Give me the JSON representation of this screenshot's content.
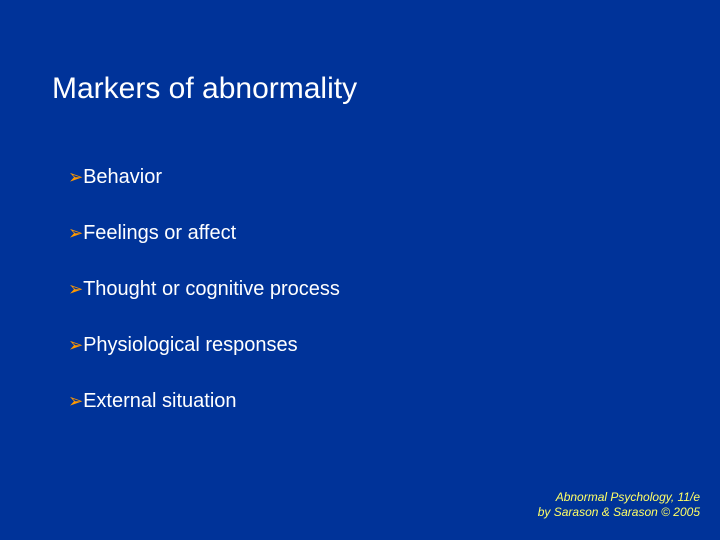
{
  "slide": {
    "background_color": "#003399",
    "title": {
      "text": "Markers of abnormality",
      "color": "#ffffff",
      "font_size": 30
    },
    "bullets": {
      "icon_color": "#ff9900",
      "text_color": "#ffffff",
      "font_size": 20,
      "items": [
        {
          "text": "Behavior"
        },
        {
          "text": "Feelings or affect"
        },
        {
          "text": "Thought or cognitive process"
        },
        {
          "text": "Physiological responses"
        },
        {
          "text": "External situation"
        }
      ]
    },
    "footer": {
      "line1": "Abnormal Psychology, 11/e",
      "line2": "by Sarason & Sarason © 2005",
      "color": "#ffff66",
      "font_size": 12
    }
  }
}
